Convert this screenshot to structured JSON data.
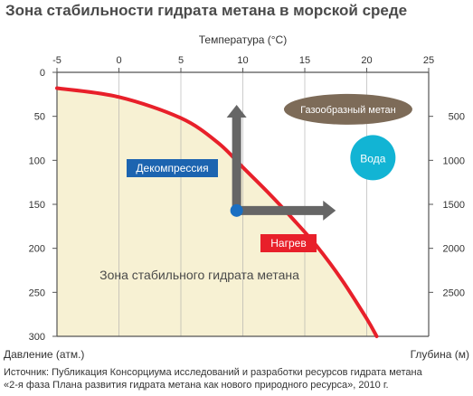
{
  "title": "Зона стабильности гидрата метана в морской среде",
  "source": {
    "line1": "Источник: Публикация Консорциума исследований и разработки ресурсов гидрата метана",
    "line2": "«2-я фаза Плана развития гидрата метана как нового природного ресурса», 2010 г."
  },
  "chart_data": {
    "type": "area",
    "x_axis": {
      "label": "Температура (°C)",
      "position": "top",
      "range": [
        -5,
        25
      ],
      "ticks": [
        -5,
        0,
        5,
        10,
        15,
        20,
        25
      ]
    },
    "y_axis_left": {
      "label": "Давление (атм.)",
      "range": [
        0,
        300
      ],
      "reversed": true,
      "ticks": [
        0,
        50,
        100,
        150,
        200,
        250,
        300
      ]
    },
    "y_axis_right": {
      "label": "Глубина (м)",
      "range": [
        0,
        3000
      ],
      "reversed": true,
      "ticks": [
        500,
        1000,
        1500,
        2000,
        2500
      ]
    },
    "grid": "vertical",
    "boundary_curve": {
      "x": [
        -5,
        0,
        5,
        8,
        10,
        12,
        14,
        16,
        18,
        20,
        20.8
      ],
      "y": [
        18,
        28,
        52,
        80,
        108,
        136,
        166,
        198,
        236,
        280,
        300
      ]
    },
    "regions": [
      {
        "label": "Зона стабильного гидрата метана",
        "x": 6.5,
        "y": 230
      },
      {
        "label": "Газообразный метан",
        "x": 18.5,
        "y": 42
      },
      {
        "label": "Вода",
        "x": 20.5,
        "y": 97
      }
    ],
    "point": {
      "x": 9.5,
      "y": 157
    },
    "arrows": [
      {
        "label": "Декомпрессия",
        "direction": "up",
        "from": [
          9.5,
          157
        ],
        "to": [
          9.5,
          37
        ]
      },
      {
        "label": "Нагрев",
        "direction": "right",
        "from": [
          9.5,
          157
        ],
        "to": [
          17.5,
          157
        ]
      }
    ],
    "colors": {
      "fill": "#f7f1d3",
      "curve": "#e8202a",
      "grid": "#aaaaaa",
      "arrow": "#666666",
      "point": "#1a6fc2",
      "decompression_label": "#1c64b0",
      "heating_label": "#e8202a",
      "gas_label": "#7d6b58",
      "water_circle": "#12b4d4"
    }
  }
}
